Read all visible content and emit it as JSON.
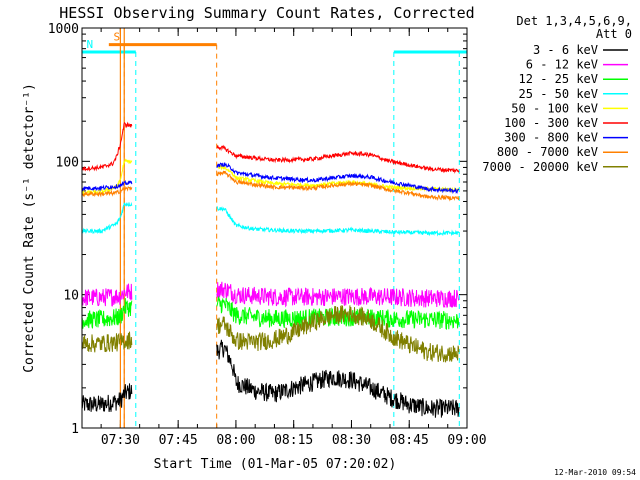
{
  "chart_data": {
    "type": "line",
    "title": "HESSI Observing Summary Count Rates, Corrected",
    "xlabel": "Start Time (01-Mar-05 07:20:02)",
    "ylabel": "Corrected Count Rate (s⁻¹ detector⁻¹)",
    "y_scale": "log",
    "ylim": [
      1,
      1000
    ],
    "xlim": [
      "07:20:02",
      "09:00:00"
    ],
    "x_ticks": [
      "07:30",
      "07:45",
      "08:00",
      "08:15",
      "08:30",
      "08:45",
      "09:00"
    ],
    "y_ticks": [
      "1",
      "10",
      "100",
      "1000"
    ],
    "legend_header": [
      "Det 1,3,4,5,6,9,",
      "Att 0"
    ],
    "legend_position": "right",
    "timestamp": "12-Mar-2010 09:54",
    "data_gap": [
      "07:33",
      "07:55"
    ],
    "series": [
      {
        "name": "3 - 6 keV",
        "color": "#000000",
        "points": [
          [
            "07:20",
            1.5
          ],
          [
            "07:25",
            1.5
          ],
          [
            "07:30",
            1.6
          ],
          [
            "07:31",
            1.8
          ],
          [
            "07:57",
            4
          ],
          [
            "07:59",
            3
          ],
          [
            "08:00",
            2.2
          ],
          [
            "08:05",
            1.9
          ],
          [
            "08:10",
            1.8
          ],
          [
            "08:15",
            2.0
          ],
          [
            "08:20",
            2.2
          ],
          [
            "08:25",
            2.4
          ],
          [
            "08:30",
            2.3
          ],
          [
            "08:35",
            2.0
          ],
          [
            "08:40",
            1.7
          ],
          [
            "08:45",
            1.5
          ],
          [
            "08:50",
            1.4
          ],
          [
            "08:55",
            1.4
          ],
          [
            "08:58",
            1.4
          ]
        ]
      },
      {
        "name": "6 - 12 keV",
        "color": "#ff00ff",
        "points": [
          [
            "07:20",
            9.5
          ],
          [
            "07:25",
            9.5
          ],
          [
            "07:30",
            9.8
          ],
          [
            "07:31",
            10.5
          ],
          [
            "07:57",
            11
          ],
          [
            "07:59",
            10.5
          ],
          [
            "08:00",
            10
          ],
          [
            "08:10",
            9.6
          ],
          [
            "08:20",
            9.6
          ],
          [
            "08:30",
            9.7
          ],
          [
            "08:40",
            9.6
          ],
          [
            "08:50",
            9.4
          ],
          [
            "08:58",
            9.4
          ]
        ]
      },
      {
        "name": "12 - 25 keV",
        "color": "#00ff00",
        "points": [
          [
            "07:20",
            6.5
          ],
          [
            "07:25",
            6.5
          ],
          [
            "07:30",
            6.8
          ],
          [
            "07:31",
            8
          ],
          [
            "07:57",
            8.5
          ],
          [
            "07:59",
            7.5
          ],
          [
            "08:00",
            7
          ],
          [
            "08:10",
            6.6
          ],
          [
            "08:20",
            6.7
          ],
          [
            "08:30",
            6.8
          ],
          [
            "08:40",
            6.6
          ],
          [
            "08:50",
            6.5
          ],
          [
            "08:58",
            6.4
          ]
        ]
      },
      {
        "name": "25 - 50 keV",
        "color": "#00ffff",
        "points": [
          [
            "07:20",
            30
          ],
          [
            "07:25",
            30
          ],
          [
            "07:29",
            34
          ],
          [
            "07:30",
            38
          ],
          [
            "07:31",
            48
          ],
          [
            "07:57",
            44
          ],
          [
            "07:58",
            40
          ],
          [
            "08:00",
            33
          ],
          [
            "08:05",
            31
          ],
          [
            "08:15",
            30
          ],
          [
            "08:20",
            30
          ],
          [
            "08:30",
            30.5
          ],
          [
            "08:40",
            29.5
          ],
          [
            "08:50",
            29
          ],
          [
            "08:58",
            29
          ]
        ]
      },
      {
        "name": "50 - 100 keV",
        "color": "#ffff00",
        "points": [
          [
            "07:20",
            58
          ],
          [
            "07:25",
            59
          ],
          [
            "07:29",
            64
          ],
          [
            "07:30",
            72
          ],
          [
            "07:31",
            100
          ],
          [
            "07:57",
            90
          ],
          [
            "07:59",
            82
          ],
          [
            "08:00",
            75
          ],
          [
            "08:10",
            68
          ],
          [
            "08:20",
            66
          ],
          [
            "08:30",
            70
          ],
          [
            "08:40",
            64
          ],
          [
            "08:50",
            62
          ],
          [
            "08:58",
            61
          ]
        ]
      },
      {
        "name": "100 - 300 keV",
        "color": "#ff0000",
        "points": [
          [
            "07:20",
            88
          ],
          [
            "07:25",
            90
          ],
          [
            "07:28",
            96
          ],
          [
            "07:29",
            108
          ],
          [
            "07:30",
            135
          ],
          [
            "07:31",
            190
          ],
          [
            "07:57",
            125
          ],
          [
            "07:59",
            115
          ],
          [
            "08:00",
            110
          ],
          [
            "08:10",
            102
          ],
          [
            "08:20",
            104
          ],
          [
            "08:25",
            110
          ],
          [
            "08:30",
            115
          ],
          [
            "08:35",
            112
          ],
          [
            "08:40",
            100
          ],
          [
            "08:45",
            94
          ],
          [
            "08:50",
            88
          ],
          [
            "08:58",
            85
          ]
        ]
      },
      {
        "name": "300 - 800 keV",
        "color": "#0000ff",
        "points": [
          [
            "07:20",
            63
          ],
          [
            "07:25",
            63
          ],
          [
            "07:29",
            65
          ],
          [
            "07:30",
            66
          ],
          [
            "07:31",
            68
          ],
          [
            "07:57",
            95
          ],
          [
            "07:59",
            88
          ],
          [
            "08:00",
            82
          ],
          [
            "08:10",
            75
          ],
          [
            "08:20",
            72
          ],
          [
            "08:25",
            75
          ],
          [
            "08:30",
            78
          ],
          [
            "08:35",
            76
          ],
          [
            "08:40",
            70
          ],
          [
            "08:45",
            66
          ],
          [
            "08:50",
            62
          ],
          [
            "08:58",
            60
          ]
        ]
      },
      {
        "name": "800 - 7000 keV",
        "color": "#ff8000",
        "points": [
          [
            "07:20",
            57
          ],
          [
            "07:25",
            57
          ],
          [
            "07:29",
            58
          ],
          [
            "07:30",
            60
          ],
          [
            "07:31",
            62
          ],
          [
            "07:57",
            82
          ],
          [
            "07:59",
            75
          ],
          [
            "08:00",
            70
          ],
          [
            "08:10",
            64
          ],
          [
            "08:20",
            63
          ],
          [
            "08:25",
            66
          ],
          [
            "08:30",
            68
          ],
          [
            "08:35",
            66
          ],
          [
            "08:40",
            61
          ],
          [
            "08:45",
            58
          ],
          [
            "08:50",
            54
          ],
          [
            "08:58",
            53
          ]
        ]
      },
      {
        "name": "7000 - 20000 keV",
        "color": "#808000",
        "points": [
          [
            "07:20",
            4.3
          ],
          [
            "07:25",
            4.3
          ],
          [
            "07:30",
            4.4
          ],
          [
            "07:31",
            4.5
          ],
          [
            "07:57",
            6
          ],
          [
            "07:59",
            5
          ],
          [
            "08:00",
            4.5
          ],
          [
            "08:05",
            4.4
          ],
          [
            "08:10",
            4.6
          ],
          [
            "08:15",
            5.2
          ],
          [
            "08:20",
            6.2
          ],
          [
            "08:25",
            7.0
          ],
          [
            "08:30",
            7.2
          ],
          [
            "08:35",
            6.5
          ],
          [
            "08:40",
            5.0
          ],
          [
            "08:45",
            4.2
          ],
          [
            "08:50",
            3.7
          ],
          [
            "08:58",
            3.6
          ]
        ]
      }
    ],
    "flags": [
      {
        "label": "S",
        "color": "#ff8000",
        "level": 750,
        "start": "07:27",
        "end": "07:55",
        "markers": [
          "07:31",
          "07:55"
        ]
      },
      {
        "label": "N",
        "color": "#00ffff",
        "level": 660,
        "start": "07:20",
        "end": "07:34",
        "markers": [
          "07:34"
        ]
      },
      {
        "label": "",
        "color": "#00ffff",
        "level": 660,
        "start": "08:41",
        "end": "09:00",
        "markers": [
          "08:41",
          "08:58"
        ]
      }
    ],
    "vertical_lines": [
      {
        "time": "07:31",
        "color": "#ff8000",
        "style": "solid"
      },
      {
        "time": "07:30",
        "color": "#ff8000",
        "style": "solid"
      }
    ]
  }
}
